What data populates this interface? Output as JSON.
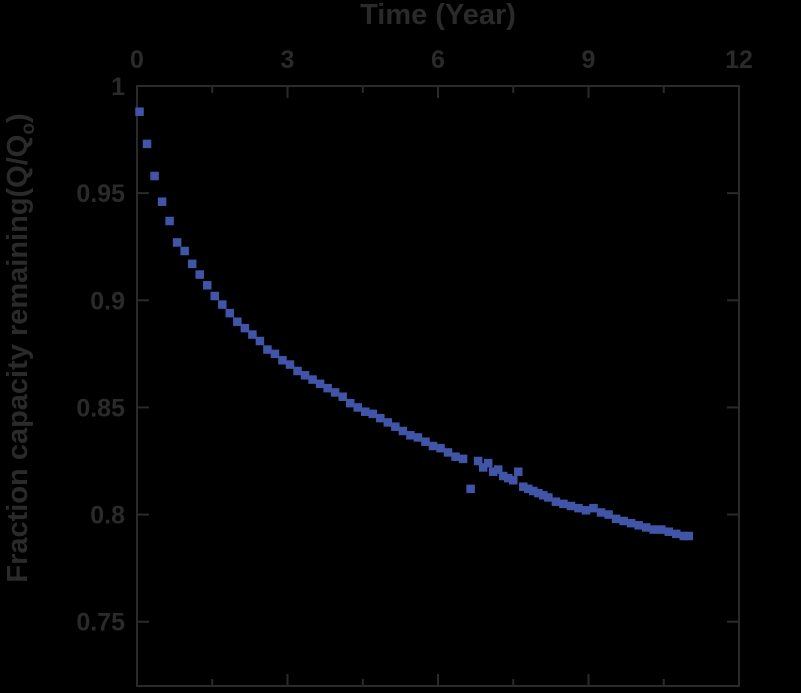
{
  "chart_data": {
    "type": "scatter",
    "xlabel": "Time (Year)",
    "ylabel_main": "Fraction capacity remaining(Q/Q",
    "ylabel_sub": "o",
    "ylabel_close": ")",
    "xlim": [
      0,
      12
    ],
    "ylim": [
      0.72,
      1.0
    ],
    "xticks": [
      0,
      3,
      6,
      9,
      12
    ],
    "xtick_labels": [
      "0",
      "3",
      "6",
      "9",
      "12"
    ],
    "yticks": [
      0.75,
      0.8,
      0.85,
      0.9,
      0.95,
      1.0
    ],
    "ytick_labels": [
      "0.75",
      "0.8",
      "0.85",
      "0.9",
      "0.95",
      "1"
    ],
    "x_minor_step": 1.5,
    "marker": "square",
    "colors": {
      "background": "#000000",
      "frame": "#2a2a2a",
      "marker": "#4055a8"
    },
    "x": [
      0.05,
      0.2,
      0.35,
      0.5,
      0.65,
      0.8,
      0.95,
      1.1,
      1.25,
      1.4,
      1.55,
      1.7,
      1.85,
      2.0,
      2.15,
      2.3,
      2.45,
      2.6,
      2.75,
      2.9,
      3.05,
      3.2,
      3.35,
      3.5,
      3.65,
      3.8,
      3.95,
      4.1,
      4.25,
      4.4,
      4.55,
      4.7,
      4.85,
      5.0,
      5.15,
      5.3,
      5.45,
      5.6,
      5.75,
      5.9,
      6.05,
      6.2,
      6.35,
      6.5,
      6.65,
      6.8,
      6.9,
      7.0,
      7.1,
      7.2,
      7.3,
      7.4,
      7.5,
      7.6,
      7.7,
      7.8,
      7.9,
      8.0,
      8.1,
      8.2,
      8.35,
      8.5,
      8.65,
      8.8,
      8.95,
      9.1,
      9.25,
      9.4,
      9.55,
      9.7,
      9.85,
      10.0,
      10.15,
      10.3,
      10.45,
      10.6,
      10.75,
      10.9,
      11.0
    ],
    "y": [
      0.988,
      0.973,
      0.958,
      0.946,
      0.937,
      0.927,
      0.923,
      0.917,
      0.912,
      0.907,
      0.902,
      0.898,
      0.894,
      0.89,
      0.887,
      0.884,
      0.881,
      0.877,
      0.875,
      0.872,
      0.87,
      0.867,
      0.865,
      0.863,
      0.861,
      0.859,
      0.857,
      0.855,
      0.852,
      0.85,
      0.848,
      0.847,
      0.845,
      0.843,
      0.841,
      0.839,
      0.837,
      0.836,
      0.834,
      0.832,
      0.831,
      0.829,
      0.827,
      0.826,
      0.812,
      0.825,
      0.822,
      0.824,
      0.82,
      0.821,
      0.818,
      0.817,
      0.816,
      0.82,
      0.813,
      0.812,
      0.811,
      0.81,
      0.809,
      0.808,
      0.806,
      0.805,
      0.804,
      0.803,
      0.802,
      0.803,
      0.801,
      0.8,
      0.798,
      0.797,
      0.796,
      0.795,
      0.794,
      0.793,
      0.793,
      0.792,
      0.791,
      0.79,
      0.79
    ]
  }
}
